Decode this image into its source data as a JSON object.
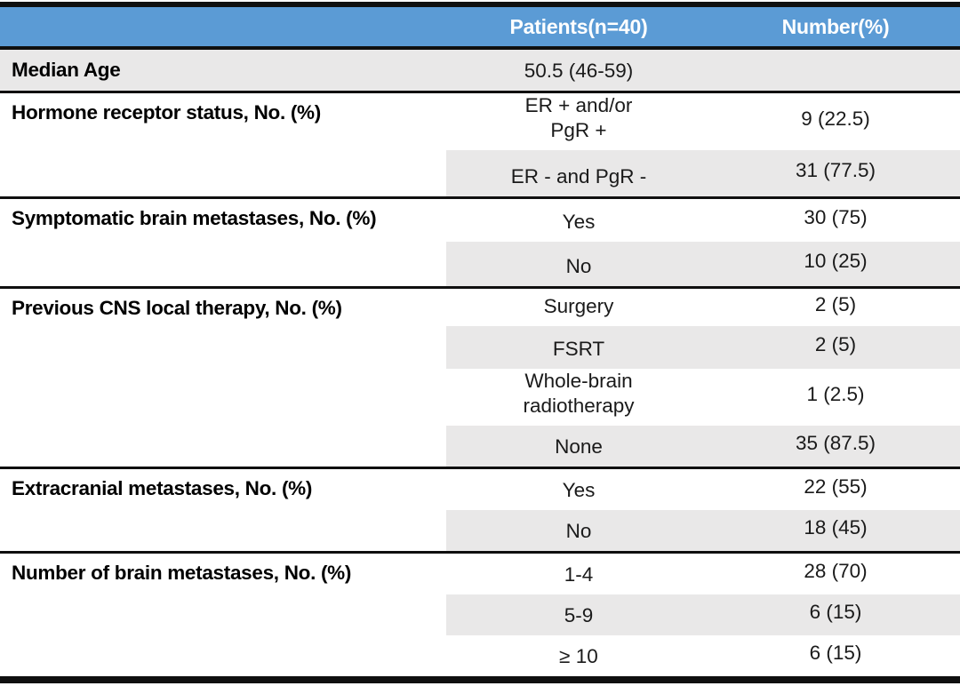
{
  "table": {
    "header": {
      "col1": "",
      "patients": "Patients(n=40)",
      "number": "Number(%)"
    },
    "colors": {
      "header_bg": "#5B9BD5",
      "header_text": "#FFFFFF",
      "row_shade": "#E9E8E8",
      "rule": "#0F0F0F"
    },
    "sections": [
      {
        "label": "Median Age",
        "rows": [
          {
            "value": "50.5 (46-59)",
            "number": ""
          }
        ]
      },
      {
        "label": "Hormone receptor status, No. (%)",
        "rows": [
          {
            "value": "ER + and/or\nPgR +",
            "number": "9 (22.5)"
          },
          {
            "value": "ER - and PgR -",
            "number": "31 (77.5)"
          }
        ]
      },
      {
        "label": "Symptomatic brain metastases, No. (%)",
        "rows": [
          {
            "value": "Yes",
            "number": "30 (75)"
          },
          {
            "value": "No",
            "number": "10 (25)"
          }
        ]
      },
      {
        "label": "Previous CNS local therapy, No. (%)",
        "rows": [
          {
            "value": "Surgery",
            "number": "2 (5)"
          },
          {
            "value": "FSRT",
            "number": "2 (5)"
          },
          {
            "value": "Whole-brain\nradiotherapy",
            "number": "1 (2.5)"
          },
          {
            "value": "None",
            "number": "35 (87.5)"
          }
        ]
      },
      {
        "label": "Extracranial metastases, No. (%)",
        "rows": [
          {
            "value": "Yes",
            "number": "22 (55)"
          },
          {
            "value": "No",
            "number": "18 (45)"
          }
        ]
      },
      {
        "label": "Number of brain metastases, No. (%)",
        "rows": [
          {
            "value": "1-4",
            "number": "28 (70)"
          },
          {
            "value": "5-9",
            "number": "6 (15)"
          },
          {
            "value": "≥ 10",
            "number": "6 (15)"
          }
        ]
      }
    ]
  }
}
